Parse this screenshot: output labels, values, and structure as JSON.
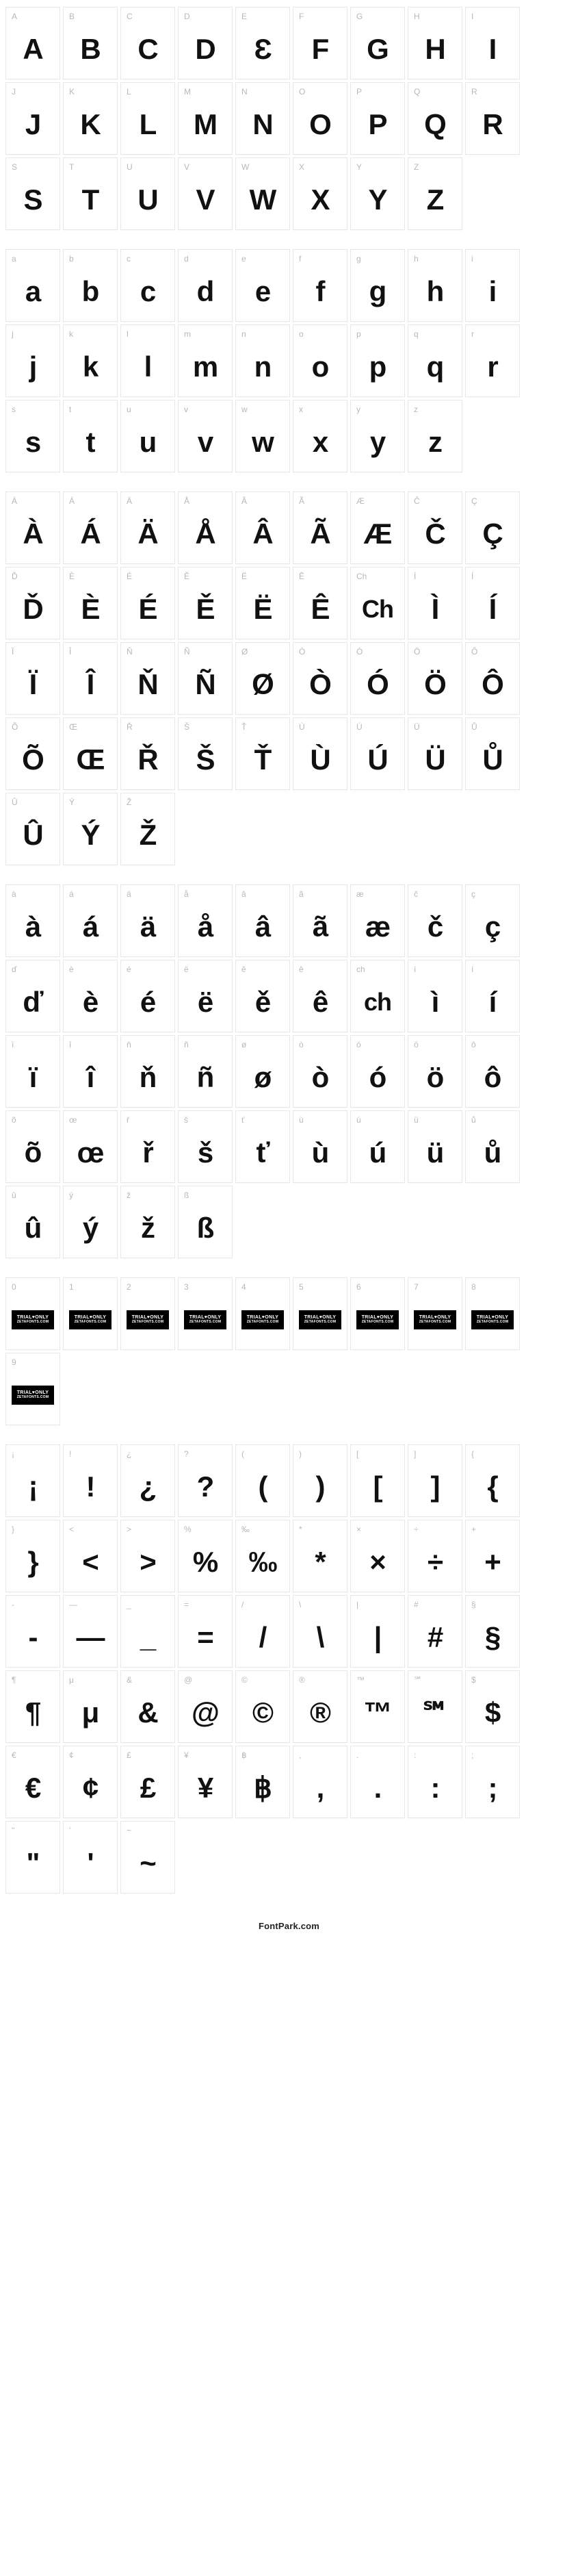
{
  "footer": "FontPark.com",
  "trialBadge": {
    "line1": "TRIAL♥ONLY",
    "line2": "ZETAFONTS.COM"
  },
  "style": {
    "cellWidth": 80,
    "cellHeight": 106,
    "cellBorder": "#e8e8e8",
    "labelColor": "#b8b8b8",
    "labelFontSize": 12,
    "glyphColor": "#111111",
    "glyphFontSize": 42,
    "glyphFontWeight": 900,
    "background": "#ffffff",
    "gap": 4
  },
  "sections": [
    {
      "name": "uppercase",
      "cells": [
        {
          "label": "A",
          "glyph": "A"
        },
        {
          "label": "B",
          "glyph": "B"
        },
        {
          "label": "C",
          "glyph": "C"
        },
        {
          "label": "D",
          "glyph": "D"
        },
        {
          "label": "E",
          "glyph": "Ɛ"
        },
        {
          "label": "F",
          "glyph": "F"
        },
        {
          "label": "G",
          "glyph": "G"
        },
        {
          "label": "H",
          "glyph": "H"
        },
        {
          "label": "I",
          "glyph": "I"
        },
        {
          "label": "J",
          "glyph": "J"
        },
        {
          "label": "K",
          "glyph": "K"
        },
        {
          "label": "L",
          "glyph": "L"
        },
        {
          "label": "M",
          "glyph": "M"
        },
        {
          "label": "N",
          "glyph": "N"
        },
        {
          "label": "O",
          "glyph": "O"
        },
        {
          "label": "P",
          "glyph": "P"
        },
        {
          "label": "Q",
          "glyph": "Q"
        },
        {
          "label": "R",
          "glyph": "R"
        },
        {
          "label": "S",
          "glyph": "S"
        },
        {
          "label": "T",
          "glyph": "T"
        },
        {
          "label": "U",
          "glyph": "U"
        },
        {
          "label": "V",
          "glyph": "V"
        },
        {
          "label": "W",
          "glyph": "W"
        },
        {
          "label": "X",
          "glyph": "X"
        },
        {
          "label": "Y",
          "glyph": "Y"
        },
        {
          "label": "Z",
          "glyph": "Z"
        }
      ]
    },
    {
      "name": "lowercase",
      "cells": [
        {
          "label": "a",
          "glyph": "a"
        },
        {
          "label": "b",
          "glyph": "b"
        },
        {
          "label": "c",
          "glyph": "c"
        },
        {
          "label": "d",
          "glyph": "d"
        },
        {
          "label": "e",
          "glyph": "e"
        },
        {
          "label": "f",
          "glyph": "f"
        },
        {
          "label": "g",
          "glyph": "g"
        },
        {
          "label": "h",
          "glyph": "h"
        },
        {
          "label": "i",
          "glyph": "i"
        },
        {
          "label": "j",
          "glyph": "j"
        },
        {
          "label": "k",
          "glyph": "k"
        },
        {
          "label": "l",
          "glyph": "l"
        },
        {
          "label": "m",
          "glyph": "m"
        },
        {
          "label": "n",
          "glyph": "n"
        },
        {
          "label": "o",
          "glyph": "o"
        },
        {
          "label": "p",
          "glyph": "p"
        },
        {
          "label": "q",
          "glyph": "q"
        },
        {
          "label": "r",
          "glyph": "r"
        },
        {
          "label": "s",
          "glyph": "s"
        },
        {
          "label": "t",
          "glyph": "t"
        },
        {
          "label": "u",
          "glyph": "u"
        },
        {
          "label": "v",
          "glyph": "v"
        },
        {
          "label": "w",
          "glyph": "w"
        },
        {
          "label": "x",
          "glyph": "x"
        },
        {
          "label": "y",
          "glyph": "y"
        },
        {
          "label": "z",
          "glyph": "z"
        }
      ]
    },
    {
      "name": "accented-upper",
      "cells": [
        {
          "label": "À",
          "glyph": "À"
        },
        {
          "label": "Á",
          "glyph": "Á"
        },
        {
          "label": "Ä",
          "glyph": "Ä"
        },
        {
          "label": "Å",
          "glyph": "Å"
        },
        {
          "label": "Â",
          "glyph": "Â"
        },
        {
          "label": "Ã",
          "glyph": "Ã"
        },
        {
          "label": "Æ",
          "glyph": "Æ"
        },
        {
          "label": "Č",
          "glyph": "Č"
        },
        {
          "label": "Ç",
          "glyph": "Ç"
        },
        {
          "label": "Ď",
          "glyph": "Ď"
        },
        {
          "label": "È",
          "glyph": "È"
        },
        {
          "label": "É",
          "glyph": "É"
        },
        {
          "label": "Ě",
          "glyph": "Ě"
        },
        {
          "label": "Ë",
          "glyph": "Ë"
        },
        {
          "label": "Ê",
          "glyph": "Ê"
        },
        {
          "label": "Ch",
          "glyph": "Ch"
        },
        {
          "label": "Ì",
          "glyph": "Ì"
        },
        {
          "label": "Í",
          "glyph": "Í"
        },
        {
          "label": "Ï",
          "glyph": "Ï"
        },
        {
          "label": "Î",
          "glyph": "Î"
        },
        {
          "label": "Ň",
          "glyph": "Ň"
        },
        {
          "label": "Ñ",
          "glyph": "Ñ"
        },
        {
          "label": "Ø",
          "glyph": "Ø"
        },
        {
          "label": "Ò",
          "glyph": "Ò"
        },
        {
          "label": "Ó",
          "glyph": "Ó"
        },
        {
          "label": "Ö",
          "glyph": "Ö"
        },
        {
          "label": "Ô",
          "glyph": "Ô"
        },
        {
          "label": "Õ",
          "glyph": "Õ"
        },
        {
          "label": "Œ",
          "glyph": "Œ"
        },
        {
          "label": "Ř",
          "glyph": "Ř"
        },
        {
          "label": "Š",
          "glyph": "Š"
        },
        {
          "label": "Ť",
          "glyph": "Ť"
        },
        {
          "label": "Ù",
          "glyph": "Ù"
        },
        {
          "label": "Ú",
          "glyph": "Ú"
        },
        {
          "label": "Ü",
          "glyph": "Ü"
        },
        {
          "label": "Ů",
          "glyph": "Ů"
        },
        {
          "label": "Û",
          "glyph": "Û"
        },
        {
          "label": "Ý",
          "glyph": "Ý"
        },
        {
          "label": "Ž",
          "glyph": "Ž"
        }
      ]
    },
    {
      "name": "accented-lower",
      "cells": [
        {
          "label": "à",
          "glyph": "à"
        },
        {
          "label": "á",
          "glyph": "á"
        },
        {
          "label": "ä",
          "glyph": "ä"
        },
        {
          "label": "å",
          "glyph": "å"
        },
        {
          "label": "â",
          "glyph": "â"
        },
        {
          "label": "ã",
          "glyph": "ã"
        },
        {
          "label": "æ",
          "glyph": "æ"
        },
        {
          "label": "č",
          "glyph": "č"
        },
        {
          "label": "ç",
          "glyph": "ç"
        },
        {
          "label": "ď",
          "glyph": "ď"
        },
        {
          "label": "è",
          "glyph": "è"
        },
        {
          "label": "é",
          "glyph": "é"
        },
        {
          "label": "ë",
          "glyph": "ë"
        },
        {
          "label": "ě",
          "glyph": "ě"
        },
        {
          "label": "ê",
          "glyph": "ê"
        },
        {
          "label": "ch",
          "glyph": "ch"
        },
        {
          "label": "ì",
          "glyph": "ì"
        },
        {
          "label": "í",
          "glyph": "í"
        },
        {
          "label": "ï",
          "glyph": "ï"
        },
        {
          "label": "î",
          "glyph": "î"
        },
        {
          "label": "ň",
          "glyph": "ň"
        },
        {
          "label": "ñ",
          "glyph": "ñ"
        },
        {
          "label": "ø",
          "glyph": "ø"
        },
        {
          "label": "ò",
          "glyph": "ò"
        },
        {
          "label": "ó",
          "glyph": "ó"
        },
        {
          "label": "ö",
          "glyph": "ö"
        },
        {
          "label": "ô",
          "glyph": "ô"
        },
        {
          "label": "õ",
          "glyph": "õ"
        },
        {
          "label": "œ",
          "glyph": "œ"
        },
        {
          "label": "ř",
          "glyph": "ř"
        },
        {
          "label": "š",
          "glyph": "š"
        },
        {
          "label": "ť",
          "glyph": "ť"
        },
        {
          "label": "ù",
          "glyph": "ù"
        },
        {
          "label": "ú",
          "glyph": "ú"
        },
        {
          "label": "ü",
          "glyph": "ü"
        },
        {
          "label": "ů",
          "glyph": "ů"
        },
        {
          "label": "û",
          "glyph": "û"
        },
        {
          "label": "ý",
          "glyph": "ý"
        },
        {
          "label": "ž",
          "glyph": "ž"
        },
        {
          "label": "ß",
          "glyph": "ß"
        }
      ]
    },
    {
      "name": "digits",
      "cells": [
        {
          "label": "0",
          "trial": true
        },
        {
          "label": "1",
          "trial": true
        },
        {
          "label": "2",
          "trial": true
        },
        {
          "label": "3",
          "trial": true
        },
        {
          "label": "4",
          "trial": true
        },
        {
          "label": "5",
          "trial": true
        },
        {
          "label": "6",
          "trial": true
        },
        {
          "label": "7",
          "trial": true
        },
        {
          "label": "8",
          "trial": true
        },
        {
          "label": "9",
          "trial": true
        }
      ]
    },
    {
      "name": "symbols",
      "cells": [
        {
          "label": "¡",
          "glyph": "¡"
        },
        {
          "label": "!",
          "glyph": "!"
        },
        {
          "label": "¿",
          "glyph": "¿"
        },
        {
          "label": "?",
          "glyph": "?"
        },
        {
          "label": "(",
          "glyph": "("
        },
        {
          "label": ")",
          "glyph": ")"
        },
        {
          "label": "[",
          "glyph": "["
        },
        {
          "label": "]",
          "glyph": "]"
        },
        {
          "label": "{",
          "glyph": "{"
        },
        {
          "label": "}",
          "glyph": "}"
        },
        {
          "label": "<",
          "glyph": "<"
        },
        {
          "label": ">",
          "glyph": ">"
        },
        {
          "label": "%",
          "glyph": "%"
        },
        {
          "label": "‰",
          "glyph": "‰"
        },
        {
          "label": "*",
          "glyph": "*"
        },
        {
          "label": "×",
          "glyph": "×"
        },
        {
          "label": "÷",
          "glyph": "÷"
        },
        {
          "label": "+",
          "glyph": "+"
        },
        {
          "label": "-",
          "glyph": "-"
        },
        {
          "label": "—",
          "glyph": "—"
        },
        {
          "label": "_",
          "glyph": "_"
        },
        {
          "label": "=",
          "glyph": "="
        },
        {
          "label": "/",
          "glyph": "/"
        },
        {
          "label": "\\",
          "glyph": "\\"
        },
        {
          "label": "|",
          "glyph": "|"
        },
        {
          "label": "#",
          "glyph": "#"
        },
        {
          "label": "§",
          "glyph": "§"
        },
        {
          "label": "¶",
          "glyph": "¶"
        },
        {
          "label": "μ",
          "glyph": "μ"
        },
        {
          "label": "&",
          "glyph": "&"
        },
        {
          "label": "@",
          "glyph": "@"
        },
        {
          "label": "©",
          "glyph": "©"
        },
        {
          "label": "®",
          "glyph": "®"
        },
        {
          "label": "™",
          "glyph": "™"
        },
        {
          "label": "℠",
          "glyph": "℠"
        },
        {
          "label": "$",
          "glyph": "$"
        },
        {
          "label": "€",
          "glyph": "€"
        },
        {
          "label": "¢",
          "glyph": "¢"
        },
        {
          "label": "£",
          "glyph": "£"
        },
        {
          "label": "¥",
          "glyph": "¥"
        },
        {
          "label": "฿",
          "glyph": "฿"
        },
        {
          "label": ",",
          "glyph": ","
        },
        {
          "label": ".",
          "glyph": "."
        },
        {
          "label": ":",
          "glyph": ":"
        },
        {
          "label": ";",
          "glyph": ";"
        },
        {
          "label": "\"",
          "glyph": "\""
        },
        {
          "label": "'",
          "glyph": "'"
        },
        {
          "label": "~",
          "glyph": "~"
        }
      ]
    }
  ]
}
